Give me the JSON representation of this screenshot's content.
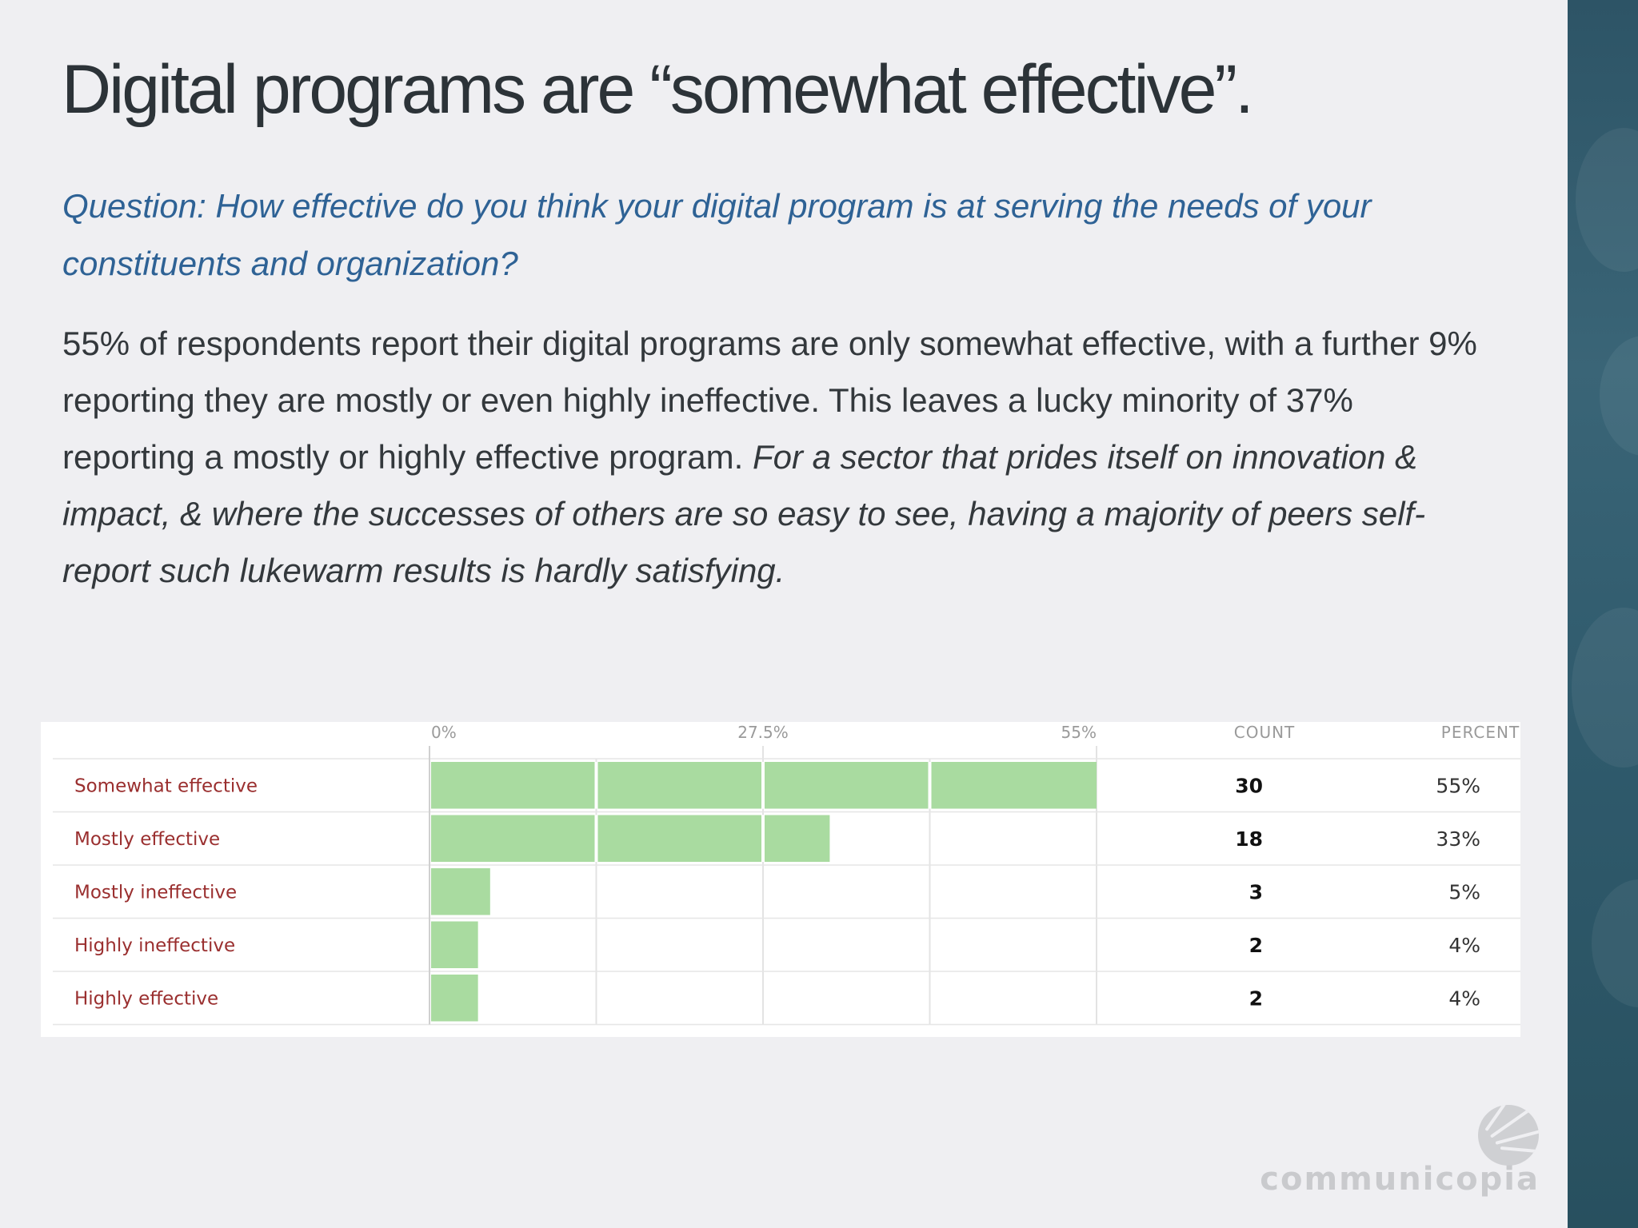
{
  "slide": {
    "title": "Digital programs are “somewhat effective”.",
    "question": "Question: How effective do you think your digital program is at serving the needs of your constituents and organization?",
    "body_plain": "55% of respondents report their digital programs are only somewhat effective, with a further 9% reporting they are mostly or even highly ineffective. This leaves a lucky minority of 37% reporting a mostly or highly effective program. ",
    "body_italic": "For a sector that prides itself on innovation & impact, & where the successes of others are so easy to see, having a majority of peers self-report such lukewarm results is hardly satisfying.",
    "logo_text": "communicopia"
  },
  "colors": {
    "bar": "#a9dba0",
    "bar_light": "#bfe4b8",
    "label": "#9a2f2f",
    "title": "#2c3338",
    "question": "#2e6295",
    "sidebar": "#2f5a6c"
  },
  "chart_data": {
    "type": "bar",
    "orientation": "horizontal",
    "categories": [
      "Somewhat effective",
      "Mostly effective",
      "Mostly ineffective",
      "Highly ineffective",
      "Highly effective"
    ],
    "values": [
      55,
      33,
      5,
      4,
      4
    ],
    "counts": [
      30,
      18,
      3,
      2,
      2
    ],
    "percent_labels": [
      "55%",
      "33%",
      "5%",
      "4%",
      "4%"
    ],
    "count_header": "COUNT",
    "percent_header": "PERCENT",
    "tick_labels": [
      "0%",
      "27.5%",
      "55%"
    ],
    "xlim": [
      0,
      55
    ],
    "grid": true
  }
}
